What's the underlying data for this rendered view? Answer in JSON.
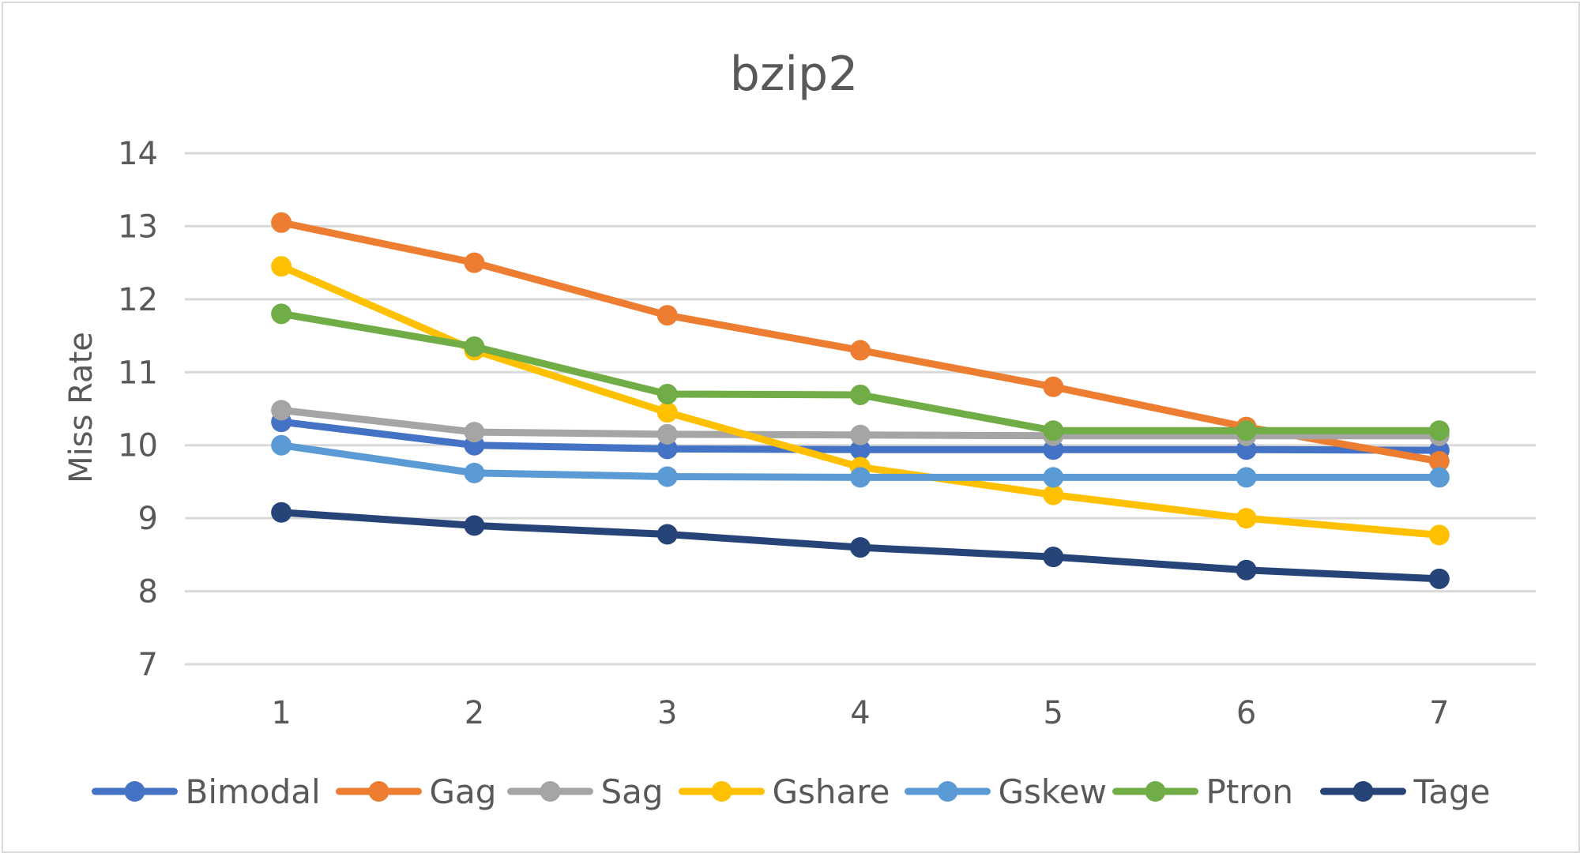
{
  "chart_data": {
    "type": "line",
    "title": "bzip2",
    "xlabel": "",
    "ylabel": "Miss Rate",
    "x": [
      1,
      2,
      3,
      4,
      5,
      6,
      7
    ],
    "ylim": [
      7,
      14
    ],
    "yticks": [
      7,
      8,
      9,
      10,
      11,
      12,
      13,
      14
    ],
    "grid": true,
    "legend_position": "bottom",
    "series": [
      {
        "name": "Bimodal",
        "color": "#4472C4",
        "values": [
          10.32,
          10.0,
          9.95,
          9.94,
          9.94,
          9.94,
          9.93
        ]
      },
      {
        "name": "Gag",
        "color": "#ED7D31",
        "values": [
          13.05,
          12.5,
          11.78,
          11.3,
          10.8,
          10.25,
          9.78
        ]
      },
      {
        "name": "Sag",
        "color": "#A5A5A5",
        "values": [
          10.48,
          10.18,
          10.15,
          10.14,
          10.13,
          10.13,
          10.13
        ]
      },
      {
        "name": "Gshare",
        "color": "#FFC000",
        "values": [
          12.45,
          11.3,
          10.45,
          9.7,
          9.32,
          9.0,
          8.77
        ]
      },
      {
        "name": "Gskew",
        "color": "#5B9BD5",
        "values": [
          10.0,
          9.62,
          9.57,
          9.56,
          9.56,
          9.56,
          9.56
        ]
      },
      {
        "name": "Ptron",
        "color": "#70AD47",
        "values": [
          11.8,
          11.35,
          10.7,
          10.69,
          10.2,
          10.2,
          10.2
        ]
      },
      {
        "name": "Tage",
        "color": "#264478",
        "values": [
          9.08,
          8.9,
          8.78,
          8.6,
          8.47,
          8.29,
          8.17
        ]
      }
    ]
  }
}
